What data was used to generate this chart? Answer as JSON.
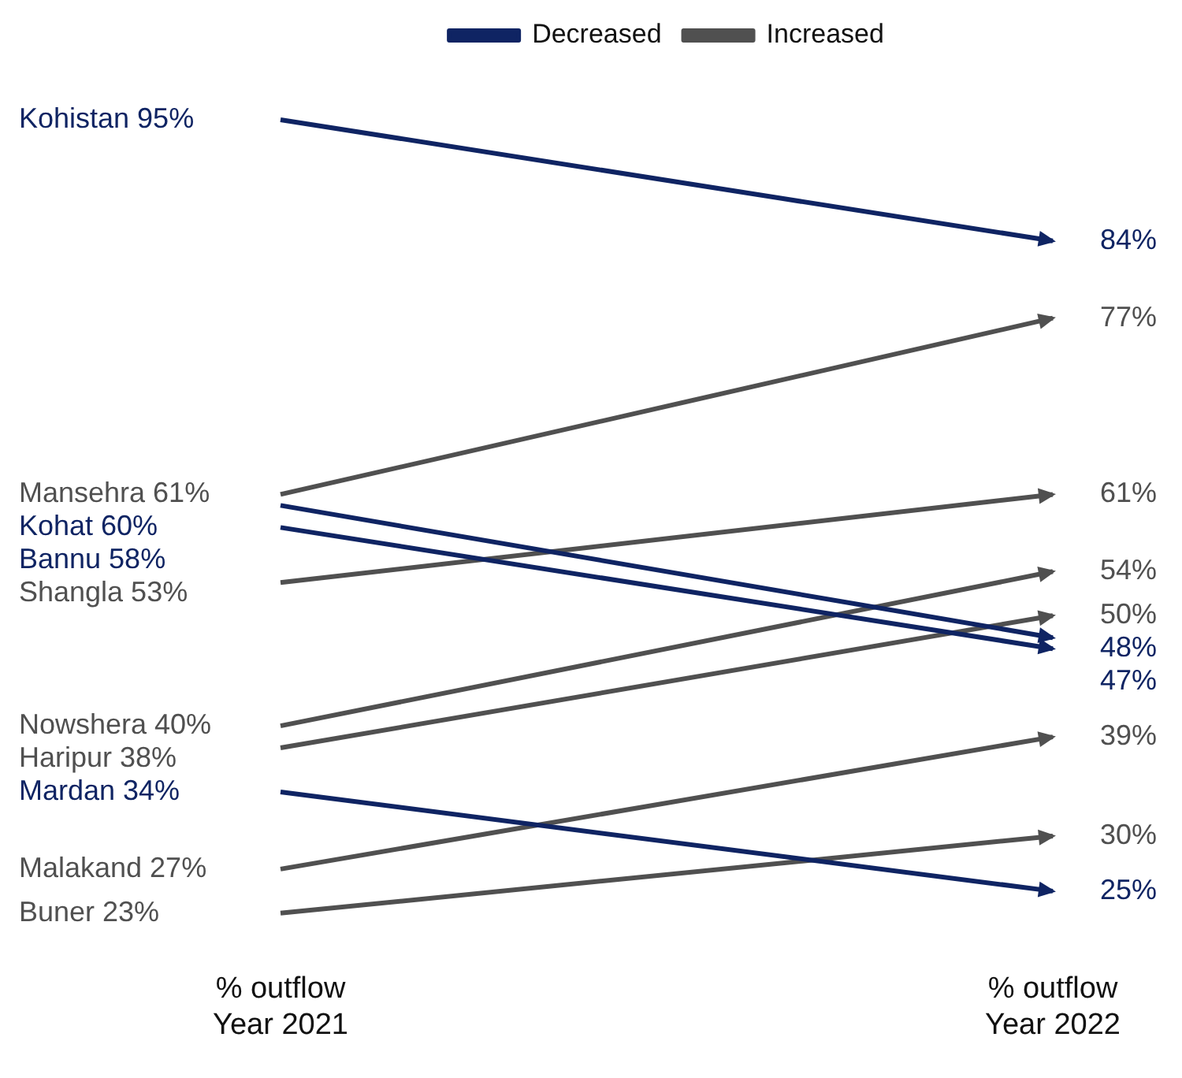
{
  "chart_data": {
    "type": "line",
    "categories": [
      "% outflow Year 2021",
      "% outflow Year 2022"
    ],
    "tick_labels": "x",
    "grid": false,
    "legend": "top",
    "series": [
      {
        "name": "Decreased",
        "color": "#0f2463",
        "values": [
          null,
          null
        ]
      },
      {
        "name": "Increased",
        "color": "#505050",
        "values": [
          null,
          null
        ]
      },
      {
        "name": "Kohistan",
        "color": "#0f2463",
        "values": [
          95,
          84
        ],
        "value_labels": [
          "95%",
          "84%"
        ]
      },
      {
        "name": "Mansehra",
        "color": "#505050",
        "values": [
          61,
          77
        ],
        "value_labels": [
          "61%",
          "77%"
        ]
      },
      {
        "name": "Kohat",
        "color": "#0f2463",
        "values": [
          60,
          48
        ],
        "value_labels": [
          "60%",
          "48%"
        ]
      },
      {
        "name": "Bannu",
        "color": "#0f2463",
        "values": [
          58,
          47
        ],
        "value_labels": [
          "58%",
          "47%"
        ]
      },
      {
        "name": "Shangla",
        "color": "#505050",
        "values": [
          53,
          61
        ],
        "value_labels": [
          "53%",
          "61%"
        ]
      },
      {
        "name": "Nowshera",
        "color": "#505050",
        "values": [
          40,
          54
        ],
        "value_labels": [
          "40%",
          "54%"
        ]
      },
      {
        "name": "Haripur",
        "color": "#505050",
        "values": [
          38,
          50
        ],
        "value_labels": [
          "38%",
          "50%"
        ]
      },
      {
        "name": "Mardan",
        "color": "#0f2463",
        "values": [
          34,
          25
        ],
        "value_labels": [
          "34%",
          "25%"
        ]
      },
      {
        "name": "Malakand",
        "color": "#505050",
        "values": [
          27,
          39
        ],
        "value_labels": [
          "27%",
          "39%"
        ]
      },
      {
        "name": "Buner",
        "color": "#505050",
        "values": [
          23,
          30
        ],
        "value_labels": [
          "23%",
          "30%"
        ]
      }
    ]
  }
}
